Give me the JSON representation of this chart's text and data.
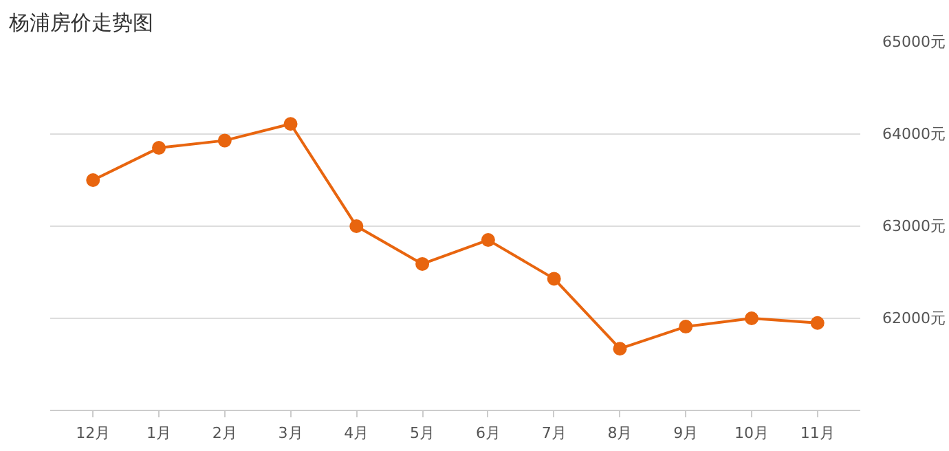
{
  "chart_data": {
    "type": "line",
    "title": "杨浦房价走势图",
    "categories": [
      "12月",
      "1月",
      "2月",
      "3月",
      "4月",
      "5月",
      "6月",
      "7月",
      "8月",
      "9月",
      "10月",
      "11月"
    ],
    "series": [
      {
        "color": "#e8650f",
        "values": [
          63500,
          63850,
          63930,
          64110,
          63000,
          62590,
          62850,
          62430,
          61670,
          61910,
          62000,
          61950
        ]
      }
    ],
    "ylim": [
      61000,
      65000
    ],
    "yticks": [
      {
        "value": 62000,
        "label": "62000元"
      },
      {
        "value": 63000,
        "label": "63000元"
      },
      {
        "value": 64000,
        "label": "64000元"
      },
      {
        "value": 65000,
        "label": "65000元"
      }
    ],
    "grid": "y",
    "marker": "circle",
    "line_style": "solid"
  }
}
